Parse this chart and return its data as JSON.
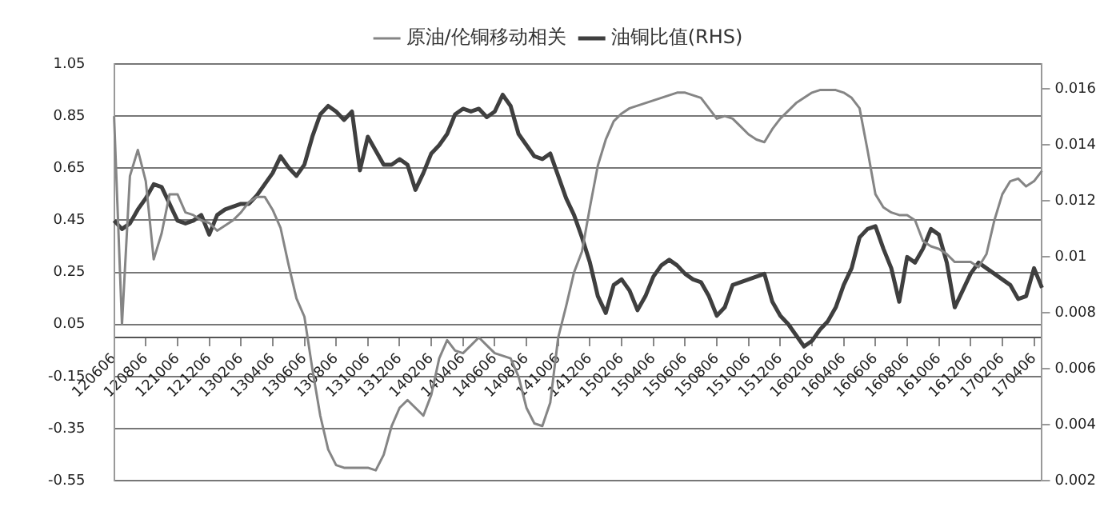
{
  "chart_data": {
    "type": "line",
    "categories": [
      "120606",
      null,
      null,
      null,
      "120806",
      null,
      null,
      null,
      "121006",
      null,
      null,
      null,
      "121206",
      null,
      null,
      null,
      "130206",
      null,
      null,
      null,
      "130406",
      null,
      null,
      null,
      "130606",
      null,
      null,
      null,
      "130806",
      null,
      null,
      null,
      "131006",
      null,
      null,
      null,
      "131206",
      null,
      null,
      null,
      "140206",
      null,
      null,
      null,
      "140406",
      null,
      null,
      null,
      "140606",
      null,
      null,
      null,
      "140806",
      null,
      null,
      null,
      "141006",
      null,
      null,
      null,
      "141206",
      null,
      null,
      null,
      "150206",
      null,
      null,
      null,
      "150406",
      null,
      null,
      null,
      "150606",
      null,
      null,
      null,
      "150806",
      null,
      null,
      null,
      "151006",
      null,
      null,
      null,
      "151206",
      null,
      null,
      null,
      "160206",
      null,
      null,
      null,
      "160406",
      null,
      null,
      null,
      "160606",
      null,
      null,
      null,
      "160806",
      null,
      null,
      null,
      "161006",
      null,
      null,
      null,
      "161206",
      null,
      null,
      null,
      "170206",
      null,
      null,
      null,
      "170406",
      null
    ],
    "series": [
      {
        "name": "原油/伦铜移动相关",
        "color": "#858585",
        "values": [
          0.85,
          0.05,
          0.62,
          0.72,
          0.6,
          0.3,
          0.4,
          0.55,
          0.55,
          0.48,
          0.47,
          0.45,
          0.44,
          0.41,
          0.43,
          0.45,
          0.48,
          0.52,
          0.54,
          0.54,
          0.49,
          0.42,
          0.28,
          0.15,
          0.08,
          -0.12,
          -0.3,
          -0.43,
          -0.49,
          -0.5,
          -0.5,
          -0.5,
          -0.5,
          -0.51,
          -0.45,
          -0.34,
          -0.27,
          -0.24,
          -0.27,
          -0.3,
          -0.22,
          -0.08,
          -0.01,
          -0.05,
          -0.06,
          -0.03,
          0.0,
          -0.03,
          -0.06,
          -0.07,
          -0.08,
          -0.15,
          -0.27,
          -0.33,
          -0.34,
          -0.25,
          0.0,
          0.12,
          0.25,
          0.33,
          0.5,
          0.66,
          0.76,
          0.83,
          0.86,
          0.88,
          0.89,
          0.9,
          0.91,
          0.92,
          0.93,
          0.94,
          0.94,
          0.93,
          0.92,
          0.88,
          0.84,
          0.85,
          0.84,
          0.81,
          0.78,
          0.76,
          0.75,
          0.8,
          0.84,
          0.87,
          0.9,
          0.92,
          0.94,
          0.95,
          0.95,
          0.95,
          0.94,
          0.92,
          0.88,
          0.72,
          0.55,
          0.5,
          0.48,
          0.47,
          0.47,
          0.45,
          0.37,
          0.35,
          0.34,
          0.32,
          0.29,
          0.29,
          0.29,
          0.27,
          0.32,
          0.45,
          0.55,
          0.6,
          0.61,
          0.58,
          0.6,
          0.64
        ]
      },
      {
        "name": "油铜比值(RHS)",
        "color": "#3f3f3f",
        "axis": "y2",
        "values": [
          0.0113,
          0.011,
          0.0112,
          0.0117,
          0.0121,
          0.0126,
          0.0125,
          0.0119,
          0.0113,
          0.0112,
          0.0113,
          0.0115,
          0.0108,
          0.0115,
          0.0117,
          0.0118,
          0.0119,
          0.0119,
          0.0122,
          0.0126,
          0.013,
          0.0136,
          0.0132,
          0.0129,
          0.0133,
          0.0143,
          0.0151,
          0.0154,
          0.0152,
          0.0149,
          0.0152,
          0.0131,
          0.0143,
          0.0138,
          0.0133,
          0.0133,
          0.0135,
          0.0133,
          0.0124,
          0.013,
          0.0137,
          0.014,
          0.0144,
          0.0151,
          0.0153,
          0.0152,
          0.0153,
          0.015,
          0.0152,
          0.0158,
          0.0154,
          0.0144,
          0.014,
          0.0136,
          0.0135,
          0.0137,
          0.0129,
          0.0121,
          0.0115,
          0.0107,
          0.0098,
          0.0086,
          0.008,
          0.009,
          0.0092,
          0.0088,
          0.0081,
          0.0086,
          0.0093,
          0.0097,
          0.0099,
          0.0097,
          0.0094,
          0.0092,
          0.0091,
          0.0086,
          0.0079,
          0.0082,
          0.009,
          0.0091,
          0.0092,
          0.0093,
          0.0094,
          0.0084,
          0.0079,
          0.0076,
          0.0072,
          0.0068,
          0.007,
          0.0074,
          0.0077,
          0.0082,
          0.009,
          0.0096,
          0.0107,
          0.011,
          0.0111,
          0.0103,
          0.0096,
          0.0084,
          0.01,
          0.0098,
          0.0103,
          0.011,
          0.0108,
          0.0098,
          0.0082,
          0.0088,
          0.0094,
          0.0098,
          0.0096,
          0.0094,
          0.0092,
          0.009,
          0.0085,
          0.0086,
          0.0096,
          0.0089
        ]
      }
    ],
    "ylim": [
      -0.55,
      1.05
    ],
    "yticks": [
      -0.55,
      -0.35,
      {
        "value": -0.15,
        "label": "-0.15"
      },
      0.05,
      0.25,
      0.45,
      0.65,
      0.85,
      1.05
    ],
    "y2lim": [
      0.002,
      0.0169
    ],
    "y2ticks": [
      0.002,
      0.004,
      0.006,
      0.008,
      0.01,
      0.012,
      0.014,
      0.016
    ],
    "grid": "y",
    "legend": "top",
    "marker": "none",
    "line_style": "solid"
  }
}
